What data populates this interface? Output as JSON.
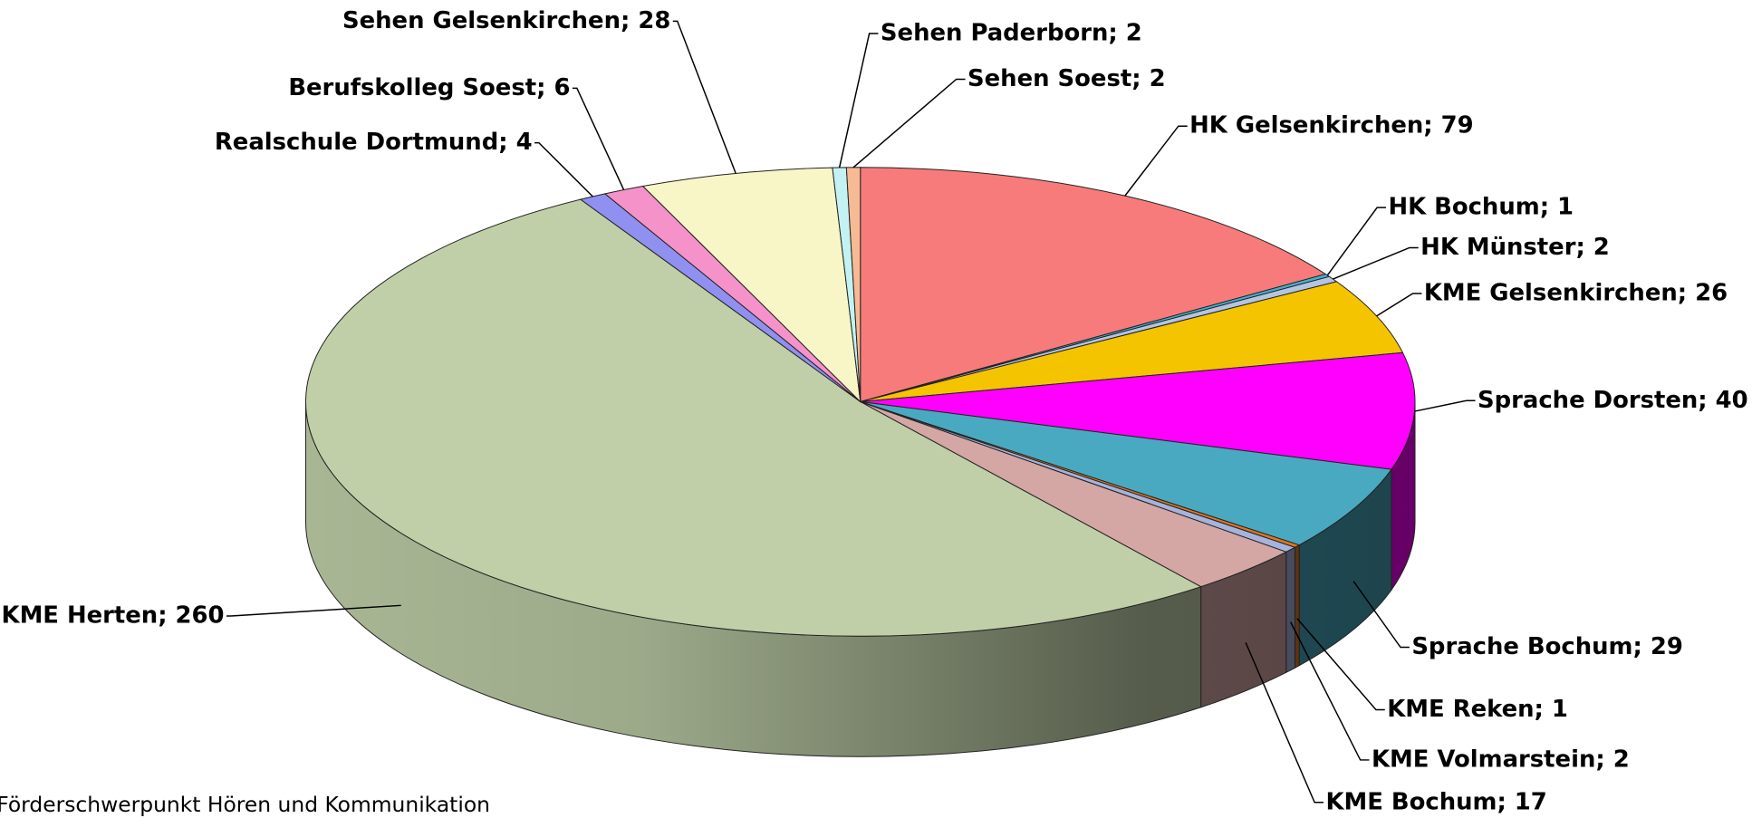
{
  "chart_data": {
    "type": "pie3d",
    "title": "Förderschwerpunkt Hören und Kommunikation",
    "values": [
      79,
      1,
      2,
      26,
      40,
      29,
      1,
      2,
      17,
      260,
      4,
      6,
      28,
      2,
      2
    ],
    "value_labels": [
      "HK Gelsenkirchen; 79",
      "HK Bochum; 1",
      "HK Münster; 2",
      "KME Gelsenkirchen; 26",
      "Sprache Dorsten; 40",
      "Sprache Bochum; 29",
      "KME Reken; 1",
      "KME Volmarstein; 2",
      "KME Bochum; 17",
      "KME Herten; 260",
      "Realschule Dortmund; 4",
      "Berufskolleg Soest; 6",
      "Sehen Gelsenkirchen; 28",
      "Sehen Paderborn; 2",
      "Sehen Soest; 2"
    ],
    "colors": [
      "#f77b7b",
      "#3fb3cc",
      "#b4c4e4",
      "#f5c400",
      "#ff00ff",
      "#49a9c1",
      "#e0761f",
      "#a4b4dc",
      "#d4a6a4",
      "#c0cfa8",
      "#9090f0",
      "#f592c9",
      "#f8f6c6",
      "#c4f2f2",
      "#f6ba94"
    ]
  }
}
